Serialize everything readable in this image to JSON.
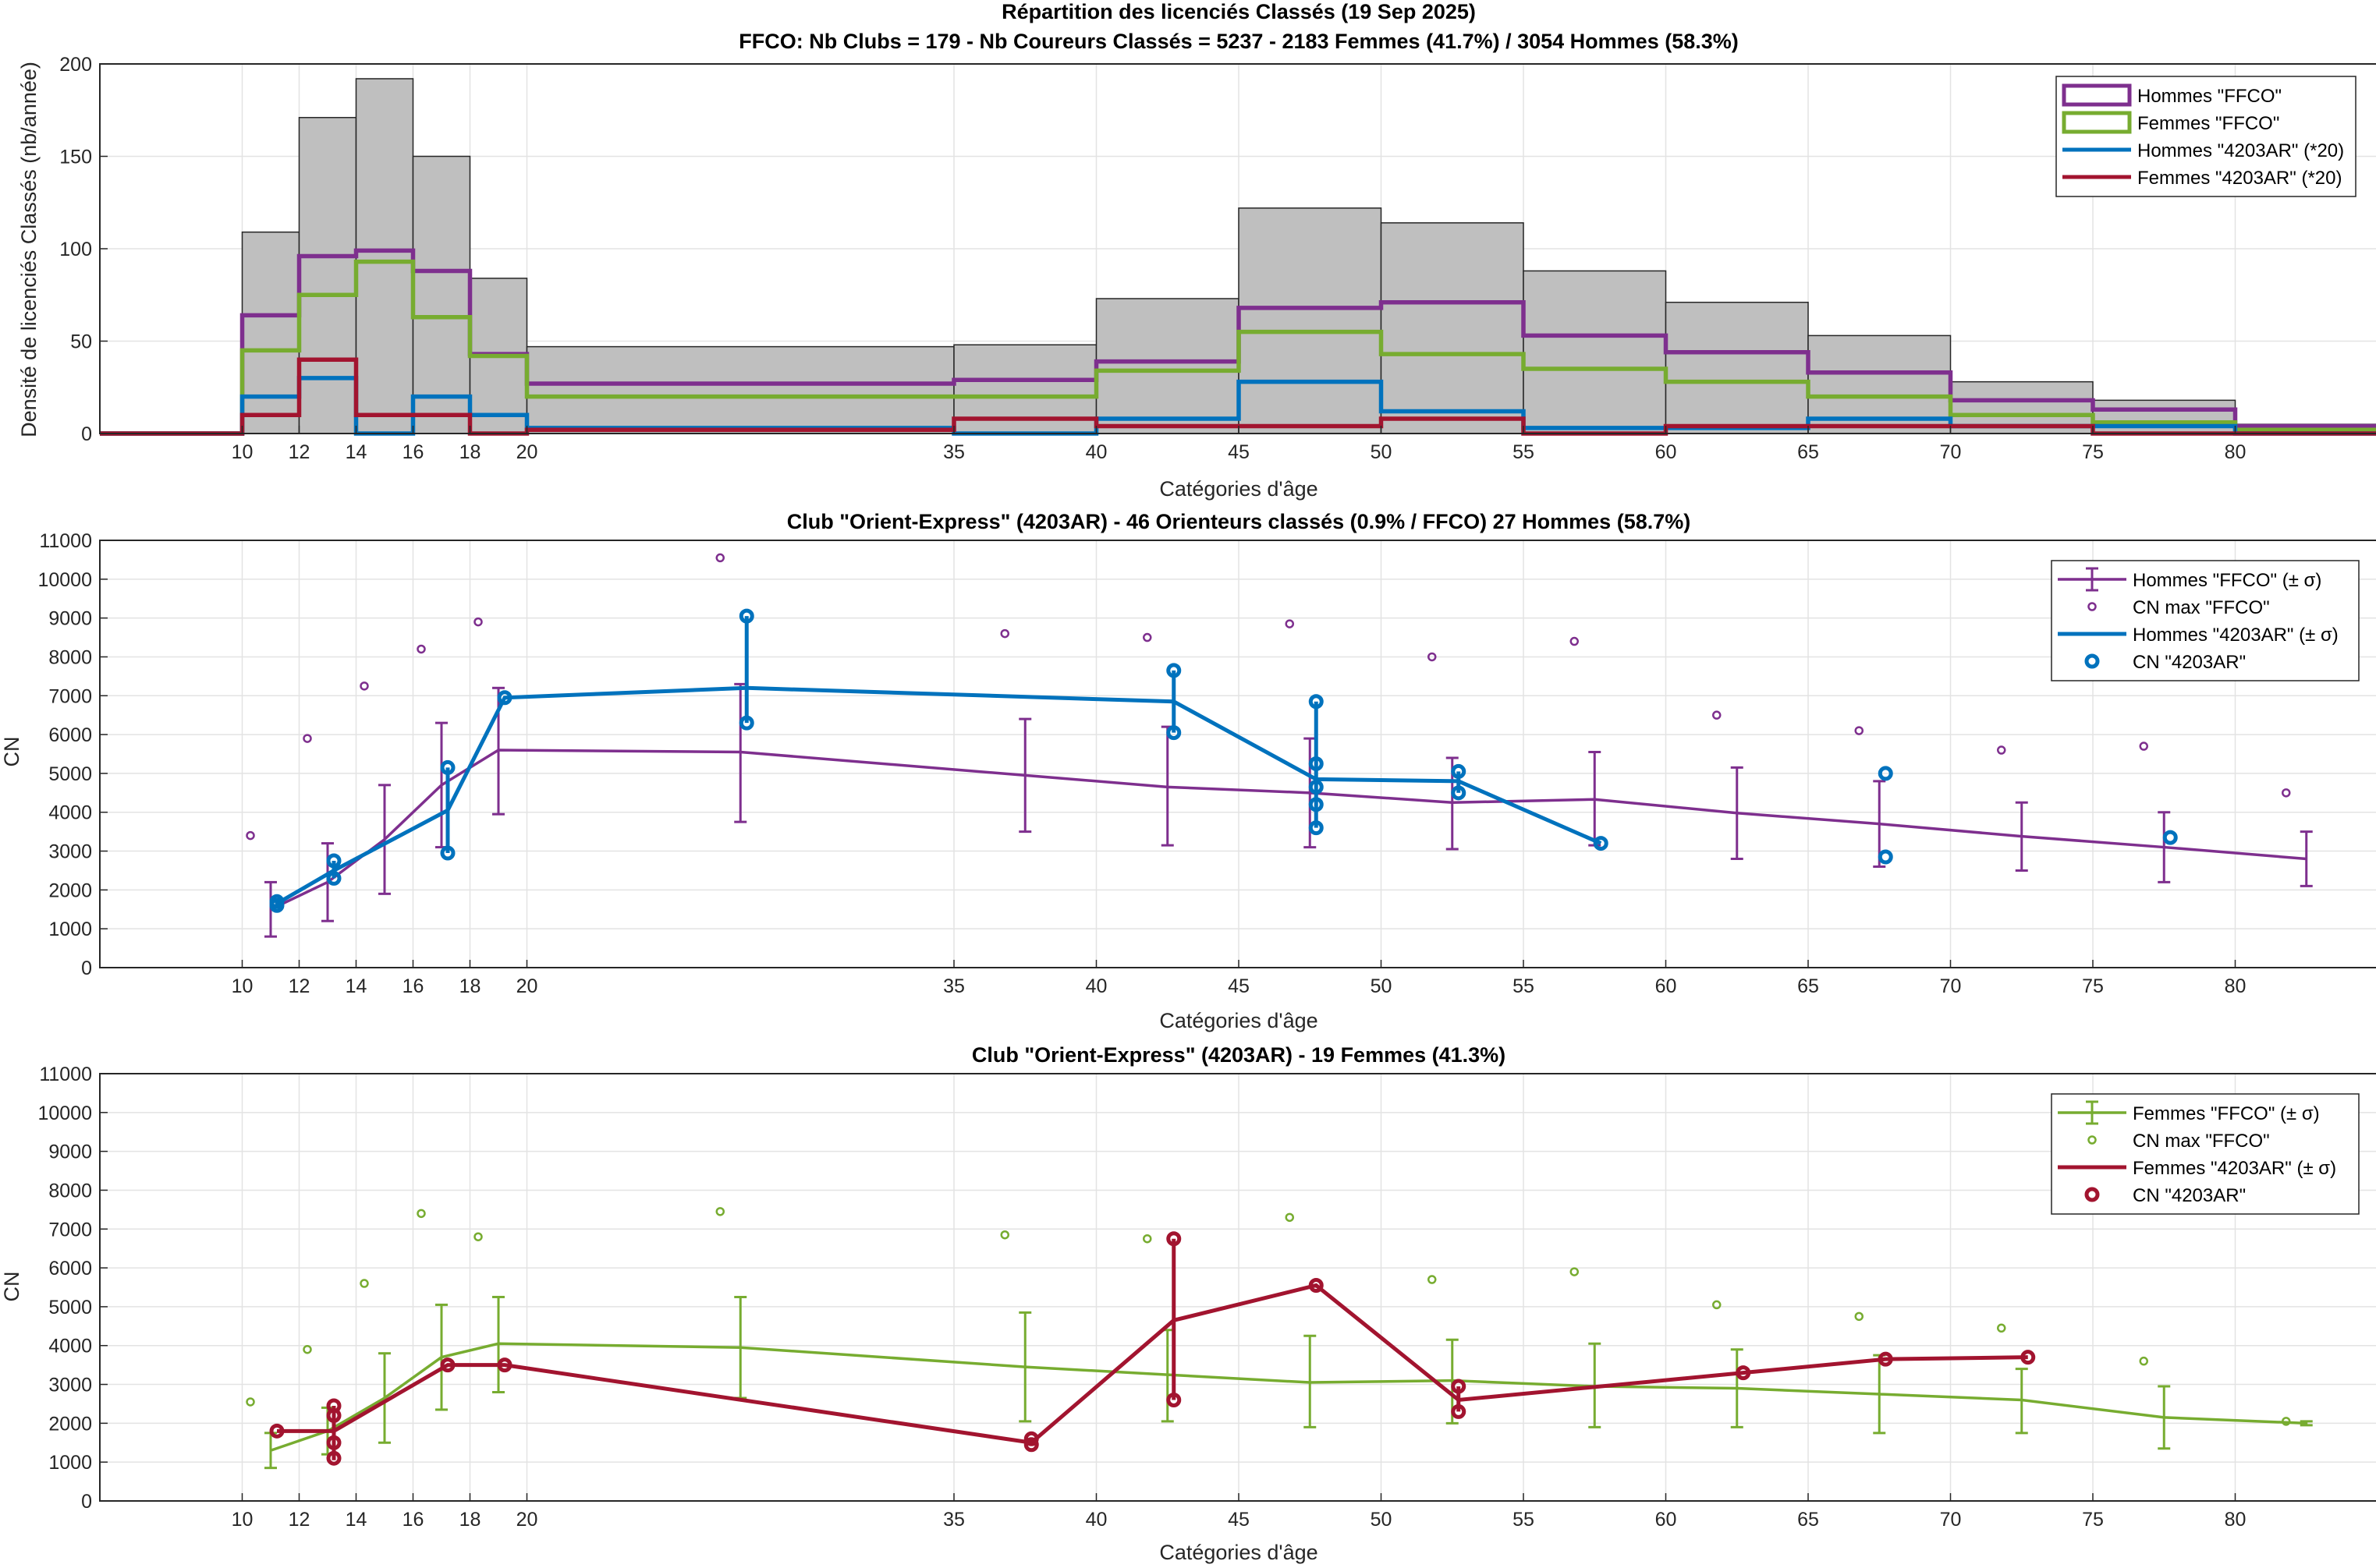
{
  "figure": {
    "title1": "Répartition des licenciés Classés (19 Sep 2025)",
    "title2": "FFCO: Nb Clubs = 179   -   Nb Coureurs Classés = 5237   -   2183 Femmes (41.7%) / 3054 Hommes (58.3%)",
    "title3": "Club \"Orient-Express\" (4203AR)  -  46 Orienteurs classés (0.9% / FFCO)  27 Hommes (58.7%)",
    "title4": "Club \"Orient-Express\" (4203AR)  -  19 Femmes (41.3%)"
  },
  "colors": {
    "hist_fill": "#bfbfbf",
    "purple": "#7e2f8e",
    "green": "#77ac30",
    "blue": "#0072bd",
    "red": "#a2142f",
    "grid": "#e3e3e3",
    "axis": "#262626"
  },
  "chart_data": [
    {
      "type": "histogram",
      "title": "Répartition des licenciés Classés (19 Sep 2025)",
      "xlabel": "Catégories d'âge",
      "ylabel": "Densité de licenciés Classés (nb/année)",
      "xlim": [
        5,
        85
      ],
      "ylim": [
        0,
        200
      ],
      "xticks": [
        10,
        12,
        14,
        16,
        18,
        20,
        35,
        40,
        45,
        50,
        55,
        60,
        65,
        70,
        75,
        80
      ],
      "yticks": [
        0,
        50,
        100,
        150,
        200
      ],
      "grid": true,
      "legend_position": "top-right",
      "bin_edges": [
        10,
        12,
        14,
        16,
        18,
        20,
        35,
        40,
        45,
        50,
        55,
        60,
        65,
        70,
        75,
        80,
        85
      ],
      "total": [
        109,
        171,
        192,
        150,
        84,
        47,
        48,
        73,
        122,
        114,
        88,
        71,
        53,
        28,
        18,
        5
      ],
      "series": [
        {
          "name": "Hommes \"FFCO\"",
          "values": [
            64,
            96,
            99,
            88,
            43,
            27,
            29,
            39,
            68,
            71,
            53,
            44,
            33,
            18,
            13,
            4
          ]
        },
        {
          "name": "Femmes \"FFCO\"",
          "values": [
            45,
            75,
            93,
            63,
            42,
            20,
            20,
            34,
            55,
            43,
            35,
            28,
            20,
            10,
            6,
            2
          ]
        },
        {
          "name": "Hommes \"4203AR\" (*20)",
          "values": [
            20,
            30,
            0,
            20,
            10,
            3,
            0,
            8,
            28,
            12,
            3,
            3,
            8,
            4,
            4,
            0
          ]
        },
        {
          "name": "Femmes \"4203AR\" (*20)",
          "values": [
            10,
            40,
            10,
            10,
            0,
            2,
            8,
            4,
            4,
            8,
            0,
            4,
            4,
            4,
            0,
            0
          ]
        }
      ]
    },
    {
      "type": "line",
      "title": "Club \"Orient-Express\" (4203AR)  -  46 Orienteurs classés (0.9% / FFCO)  27 Hommes (58.7%)",
      "xlabel": "Catégories d'âge",
      "ylabel": "CN",
      "xlim": [
        5,
        85
      ],
      "ylim": [
        0,
        11000
      ],
      "xticks": [
        10,
        12,
        14,
        16,
        18,
        20,
        35,
        40,
        45,
        50,
        55,
        60,
        65,
        70,
        75,
        80
      ],
      "yticks": [
        0,
        1000,
        2000,
        3000,
        4000,
        5000,
        6000,
        7000,
        8000,
        9000,
        10000,
        11000
      ],
      "grid": true,
      "legend_position": "top-right",
      "ffco": {
        "name": "Hommes \"FFCO\" (± σ)",
        "x": [
          11,
          13,
          15,
          17,
          19,
          27.5,
          37.5,
          42.5,
          47.5,
          52.5,
          57.5,
          62.5,
          67.5,
          72.5,
          77.5,
          82.5
        ],
        "y": [
          1500,
          2200,
          3300,
          4700,
          5600,
          5550,
          4950,
          4650,
          4500,
          4250,
          4330,
          3980,
          3700,
          3380,
          3100,
          2800
        ],
        "low": [
          800,
          1200,
          1900,
          3100,
          3950,
          3750,
          3500,
          3150,
          3100,
          3050,
          3150,
          2800,
          2600,
          2500,
          2200,
          2100
        ],
        "high": [
          2200,
          3200,
          4700,
          6300,
          7200,
          7300,
          6400,
          6200,
          5900,
          5400,
          5550,
          5150,
          4800,
          4250,
          4000,
          3500
        ]
      },
      "cn_max": {
        "name": "CN max \"FFCO\"",
        "x": [
          11,
          13,
          15,
          17,
          19,
          27.5,
          37.5,
          42.5,
          47.5,
          52.5,
          57.5,
          62.5,
          67.5,
          72.5,
          77.5,
          82.5
        ],
        "y": [
          3400,
          5900,
          7250,
          8200,
          8900,
          10550,
          8600,
          8500,
          8850,
          8000,
          8400,
          6500,
          6100,
          5600,
          5700,
          4500
        ]
      },
      "club_line": {
        "name": "Hommes \"4203AR\" (± σ)",
        "x": [
          11,
          13,
          17,
          19,
          27.5,
          42.5,
          47.5,
          52.5,
          57.5
        ],
        "y": [
          1650,
          2500,
          4050,
          6950,
          7200,
          6850,
          4850,
          4800,
          3200
        ],
        "low": [
          1550,
          2300,
          2950,
          6950,
          6300,
          6050,
          3600,
          4500,
          3200
        ],
        "high": [
          1700,
          2750,
          5150,
          6950,
          9050,
          7650,
          6850,
          5050,
          3200
        ]
      },
      "club_points": {
        "name": "CN \"4203AR\"",
        "x": [
          11,
          11,
          13,
          13,
          17,
          17,
          19,
          27.5,
          27.5,
          42.5,
          42.5,
          47.5,
          47.5,
          47.5,
          47.5,
          47.5,
          52.5,
          52.5,
          57.5,
          67.5,
          67.5,
          77.5
        ],
        "y": [
          1700,
          1600,
          2750,
          2300,
          5150,
          2950,
          6950,
          9050,
          6300,
          7650,
          6050,
          6850,
          5250,
          4650,
          4200,
          3600,
          5050,
          4500,
          3200,
          5000,
          2850,
          3350
        ]
      }
    },
    {
      "type": "line",
      "title": "Club \"Orient-Express\" (4203AR)  -  19 Femmes (41.3%)",
      "xlabel": "Catégories d'âge",
      "ylabel": "CN",
      "xlim": [
        5,
        85
      ],
      "ylim": [
        0,
        11000
      ],
      "xticks": [
        10,
        12,
        14,
        16,
        18,
        20,
        35,
        40,
        45,
        50,
        55,
        60,
        65,
        70,
        75,
        80
      ],
      "yticks": [
        0,
        1000,
        2000,
        3000,
        4000,
        5000,
        6000,
        7000,
        8000,
        9000,
        10000,
        11000
      ],
      "grid": true,
      "legend_position": "top-right",
      "ffco": {
        "name": "Femmes \"FFCO\" (± σ)",
        "x": [
          11,
          13,
          15,
          17,
          19,
          27.5,
          37.5,
          42.5,
          47.5,
          52.5,
          57.5,
          62.5,
          67.5,
          72.5,
          77.5,
          82.5
        ],
        "y": [
          1300,
          1800,
          2650,
          3700,
          4050,
          3950,
          3450,
          3250,
          3050,
          3100,
          2950,
          2900,
          2750,
          2600,
          2150,
          2000
        ],
        "low": [
          850,
          1200,
          1500,
          2350,
          2800,
          2650,
          2050,
          2050,
          1900,
          2000,
          1900,
          1900,
          1750,
          1750,
          1350,
          1950
        ],
        "high": [
          1750,
          2400,
          3800,
          5050,
          5250,
          5250,
          4850,
          4400,
          4250,
          4150,
          4050,
          3900,
          3750,
          3400,
          2950,
          2050
        ]
      },
      "cn_max": {
        "name": "CN max \"FFCO\"",
        "x": [
          11,
          13,
          15,
          17,
          19,
          27.5,
          37.5,
          42.5,
          47.5,
          52.5,
          57.5,
          62.5,
          67.5,
          72.5,
          77.5,
          82.5
        ],
        "y": [
          2550,
          3900,
          5600,
          7400,
          6800,
          7450,
          6850,
          6750,
          7300,
          5700,
          5900,
          5050,
          4750,
          4450,
          3600,
          2050
        ]
      },
      "club_line": {
        "name": "Femmes \"4203AR\" (± σ)",
        "x": [
          11,
          13,
          17,
          19,
          37.5,
          42.5,
          47.5,
          52.5,
          62.5,
          67.5,
          72.5
        ],
        "y": [
          1800,
          1800,
          3500,
          3500,
          1500,
          4650,
          5550,
          2600,
          3300,
          3650,
          3700
        ],
        "low": [
          1800,
          1050,
          3500,
          3500,
          1450,
          2600,
          5550,
          2300,
          3300,
          3650,
          3700
        ],
        "high": [
          1800,
          2450,
          3500,
          3500,
          1600,
          6750,
          5550,
          2950,
          3300,
          3650,
          3700
        ]
      },
      "club_points": {
        "name": "CN \"4203AR\"",
        "x": [
          11,
          13,
          13,
          13,
          13,
          17,
          19,
          37.5,
          37.5,
          42.5,
          42.5,
          47.5,
          52.5,
          52.5,
          62.5,
          67.5,
          72.5
        ],
        "y": [
          1800,
          2450,
          2200,
          1500,
          1100,
          3500,
          3500,
          1600,
          1450,
          6750,
          2600,
          5550,
          2950,
          2300,
          3300,
          3650,
          3700
        ]
      }
    }
  ]
}
